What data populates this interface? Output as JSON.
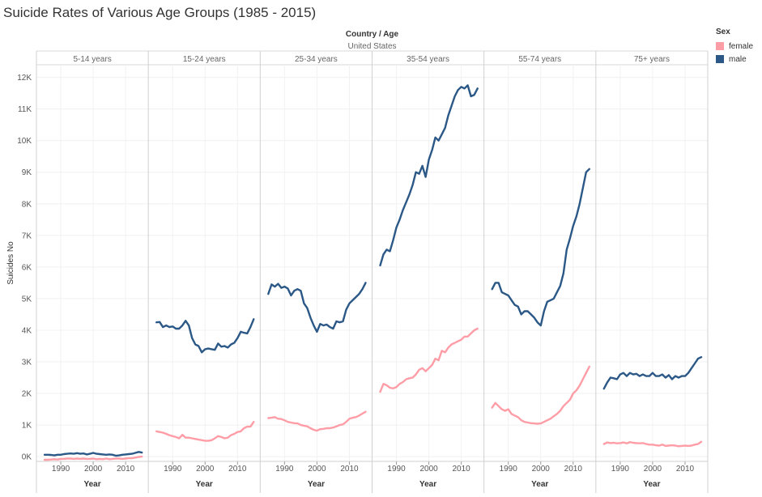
{
  "title": "Suicide Rates of Various Age Groups (1985 - 2015)",
  "header": {
    "group_label": "Country / Age",
    "country": "United States"
  },
  "legend": {
    "title": "Sex",
    "items": [
      {
        "label": "female",
        "color": "#ff9da7"
      },
      {
        "label": "male",
        "color": "#2b5886"
      }
    ]
  },
  "chart_data": {
    "type": "line",
    "title": "Suicide Rates of Various Age Groups (1985 - 2015)",
    "xlabel": "Year",
    "ylabel": "Suicides No",
    "ylim": [
      -150,
      12400
    ],
    "yticks": [
      0,
      1000,
      2000,
      3000,
      4000,
      5000,
      6000,
      7000,
      8000,
      9000,
      10000,
      11000,
      12000
    ],
    "ytick_labels": [
      "0K",
      "1K",
      "2K",
      "3K",
      "4K",
      "5K",
      "6K",
      "7K",
      "8K",
      "9K",
      "10K",
      "11K",
      "12K"
    ],
    "xlim": [
      1982.5,
      2017
    ],
    "xticks": [
      1990,
      2000,
      2010
    ],
    "xtick_labels": [
      "1990",
      "2000",
      "2010"
    ],
    "grid": true,
    "legend_position": "top-right",
    "facets": [
      {
        "label": "5-14 years",
        "x": [
          1985,
          1986,
          1987,
          1988,
          1989,
          1990,
          1991,
          1992,
          1993,
          1994,
          1995,
          1996,
          1997,
          1998,
          1999,
          2000,
          2001,
          2002,
          2003,
          2004,
          2005,
          2006,
          2007,
          2008,
          2009,
          2010,
          2011,
          2012,
          2013,
          2014,
          2015
        ],
        "series": [
          {
            "name": "female",
            "values": [
              -100,
              -100,
              -90,
              -80,
              -90,
              -70,
              -70,
              -60,
              -60,
              -70,
              -60,
              -70,
              -60,
              -70,
              -70,
              -60,
              -80,
              -70,
              -80,
              -60,
              -80,
              -70,
              -60,
              -60,
              -70,
              -60,
              -50,
              -50,
              -30,
              -10,
              0
            ]
          },
          {
            "name": "male",
            "values": [
              60,
              60,
              55,
              40,
              60,
              60,
              80,
              90,
              100,
              90,
              110,
              90,
              100,
              70,
              90,
              120,
              90,
              80,
              70,
              60,
              70,
              60,
              30,
              40,
              60,
              70,
              80,
              90,
              120,
              150,
              130
            ]
          }
        ]
      },
      {
        "label": "15-24 years",
        "x": [
          1985,
          1986,
          1987,
          1988,
          1989,
          1990,
          1991,
          1992,
          1993,
          1994,
          1995,
          1996,
          1997,
          1998,
          1999,
          2000,
          2001,
          2002,
          2003,
          2004,
          2005,
          2006,
          2007,
          2008,
          2009,
          2010,
          2011,
          2012,
          2013,
          2014,
          2015
        ],
        "series": [
          {
            "name": "female",
            "values": [
              800,
              780,
              760,
              720,
              680,
              650,
              620,
              580,
              690,
              600,
              600,
              580,
              560,
              540,
              520,
              500,
              500,
              520,
              580,
              650,
              620,
              580,
              600,
              680,
              720,
              780,
              800,
              900,
              950,
              950,
              1100
            ]
          },
          {
            "name": "male",
            "values": [
              4250,
              4260,
              4100,
              4150,
              4100,
              4120,
              4050,
              4050,
              4150,
              4300,
              4150,
              3750,
              3550,
              3500,
              3300,
              3400,
              3420,
              3400,
              3380,
              3580,
              3480,
              3500,
              3450,
              3550,
              3600,
              3750,
              3950,
              3920,
              3900,
              4100,
              4350
            ]
          }
        ]
      },
      {
        "label": "25-34 years",
        "x": [
          1985,
          1986,
          1987,
          1988,
          1989,
          1990,
          1991,
          1992,
          1993,
          1994,
          1995,
          1996,
          1997,
          1998,
          1999,
          2000,
          2001,
          2002,
          2003,
          2004,
          2005,
          2006,
          2007,
          2008,
          2009,
          2010,
          2011,
          2012,
          2013,
          2014,
          2015
        ],
        "series": [
          {
            "name": "female",
            "values": [
              1220,
              1230,
              1250,
              1200,
              1190,
              1150,
              1100,
              1080,
              1060,
              1050,
              1000,
              980,
              960,
              900,
              850,
              820,
              870,
              880,
              900,
              900,
              920,
              960,
              1000,
              1020,
              1100,
              1200,
              1230,
              1250,
              1300,
              1360,
              1420
            ]
          },
          {
            "name": "male",
            "values": [
              5150,
              5450,
              5380,
              5470,
              5340,
              5380,
              5320,
              5100,
              5250,
              5300,
              5250,
              4850,
              4700,
              4400,
              4150,
              3950,
              4200,
              4150,
              4180,
              4100,
              4050,
              4280,
              4250,
              4280,
              4650,
              4850,
              4950,
              5050,
              5150,
              5300,
              5500
            ]
          }
        ]
      },
      {
        "label": "35-54 years",
        "x": [
          1985,
          1986,
          1987,
          1988,
          1989,
          1990,
          1991,
          1992,
          1993,
          1994,
          1995,
          1996,
          1997,
          1998,
          1999,
          2000,
          2001,
          2002,
          2003,
          2004,
          2005,
          2006,
          2007,
          2008,
          2009,
          2010,
          2011,
          2012,
          2013,
          2014,
          2015
        ],
        "series": [
          {
            "name": "female",
            "values": [
              2050,
              2300,
              2260,
              2180,
              2160,
              2200,
              2300,
              2360,
              2450,
              2480,
              2500,
              2600,
              2750,
              2800,
              2700,
              2800,
              2900,
              3100,
              3050,
              3350,
              3300,
              3450,
              3550,
              3600,
              3650,
              3700,
              3800,
              3800,
              3900,
              4000,
              4050
            ]
          },
          {
            "name": "male",
            "values": [
              6050,
              6400,
              6550,
              6500,
              6850,
              7250,
              7500,
              7800,
              8050,
              8300,
              8600,
              9000,
              8950,
              9200,
              8850,
              9400,
              9700,
              10100,
              10000,
              10200,
              10400,
              10800,
              11100,
              11400,
              11600,
              11700,
              11650,
              11750,
              11400,
              11450,
              11650
            ]
          }
        ]
      },
      {
        "label": "55-74 years",
        "x": [
          1985,
          1986,
          1987,
          1988,
          1989,
          1990,
          1991,
          1992,
          1993,
          1994,
          1995,
          1996,
          1997,
          1998,
          1999,
          2000,
          2001,
          2002,
          2003,
          2004,
          2005,
          2006,
          2007,
          2008,
          2009,
          2010,
          2011,
          2012,
          2013,
          2014,
          2015
        ],
        "series": [
          {
            "name": "female",
            "values": [
              1550,
              1700,
              1600,
              1500,
              1450,
              1500,
              1350,
              1300,
              1250,
              1150,
              1100,
              1080,
              1060,
              1050,
              1040,
              1050,
              1100,
              1150,
              1200,
              1280,
              1350,
              1450,
              1600,
              1700,
              1800,
              2000,
              2100,
              2250,
              2450,
              2650,
              2850
            ]
          },
          {
            "name": "male",
            "values": [
              5300,
              5500,
              5500,
              5200,
              5150,
              5100,
              4950,
              4800,
              4750,
              4500,
              4600,
              4600,
              4500,
              4400,
              4250,
              4150,
              4600,
              4900,
              4950,
              5000,
              5200,
              5400,
              5800,
              6550,
              6900,
              7300,
              7600,
              8000,
              8500,
              9000,
              9100
            ]
          }
        ]
      },
      {
        "label": "75+ years",
        "x": [
          1985,
          1986,
          1987,
          1988,
          1989,
          1990,
          1991,
          1992,
          1993,
          1994,
          1995,
          1996,
          1997,
          1998,
          1999,
          2000,
          2001,
          2002,
          2003,
          2004,
          2005,
          2006,
          2007,
          2008,
          2009,
          2010,
          2011,
          2012,
          2013,
          2014,
          2015
        ],
        "series": [
          {
            "name": "female",
            "values": [
              400,
              450,
              430,
              440,
              420,
              430,
              450,
              420,
              460,
              440,
              430,
              420,
              430,
              400,
              380,
              380,
              360,
              350,
              380,
              340,
              350,
              360,
              350,
              330,
              340,
              350,
              340,
              350,
              380,
              400,
              470
            ]
          },
          {
            "name": "male",
            "values": [
              2150,
              2350,
              2500,
              2480,
              2450,
              2600,
              2650,
              2550,
              2650,
              2600,
              2620,
              2550,
              2600,
              2550,
              2550,
              2650,
              2550,
              2550,
              2600,
              2500,
              2580,
              2450,
              2550,
              2500,
              2550,
              2550,
              2650,
              2800,
              2950,
              3100,
              3150
            ]
          }
        ]
      }
    ]
  }
}
